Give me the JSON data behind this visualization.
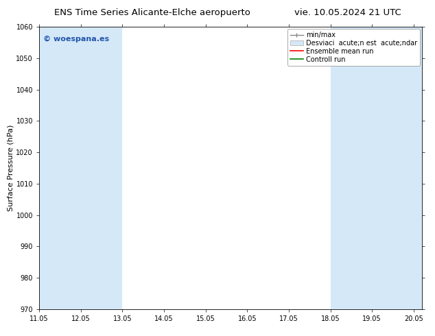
{
  "title_left": "ENS Time Series Alicante-Elche aeropuerto",
  "title_right": "vie. 10.05.2024 21 UTC",
  "ylabel": "Surface Pressure (hPa)",
  "ylim": [
    970,
    1060
  ],
  "yticks": [
    970,
    980,
    990,
    1000,
    1010,
    1020,
    1030,
    1040,
    1050,
    1060
  ],
  "xlim_min": 11.05,
  "xlim_max": 20.25,
  "xticks": [
    11.05,
    12.05,
    13.05,
    14.05,
    15.05,
    16.05,
    17.05,
    18.05,
    19.05,
    20.05
  ],
  "xtick_labels": [
    "11.05",
    "12.05",
    "13.05",
    "14.05",
    "15.05",
    "16.05",
    "17.05",
    "18.05",
    "19.05",
    "20.05"
  ],
  "shaded_ranges": [
    [
      11.05,
      13.05
    ],
    [
      18.05,
      20.25
    ]
  ],
  "band_color": "#d4e8f8",
  "bg_color": "#ffffff",
  "axes_bg_color": "#ffffff",
  "watermark_text": "© woespana.es",
  "watermark_color": "#2255aa",
  "legend_label_minmax": "min/max",
  "legend_label_std": "Desviaci  acute;n est  acute;ndar",
  "legend_label_ens": "Ensemble mean run",
  "legend_label_ctrl": "Controll run",
  "title_fontsize": 9.5,
  "tick_fontsize": 7,
  "ylabel_fontsize": 8,
  "legend_fontsize": 7
}
